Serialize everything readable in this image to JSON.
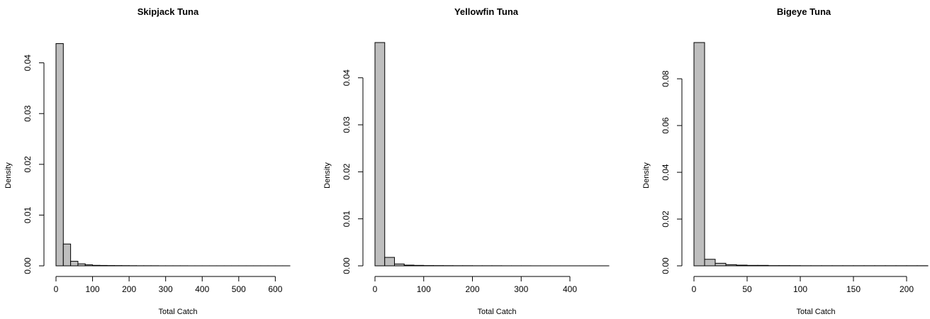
{
  "chart_data": [
    {
      "type": "bar",
      "title": "Skipjack Tuna",
      "xlabel": "Total Catch",
      "ylabel": "Density",
      "bin_width": 20,
      "bin_start": 0,
      "values": [
        0.0438,
        0.0043,
        0.0009,
        0.0004,
        0.0002,
        0.0001,
        8e-05,
        6e-05,
        5e-05,
        4e-05,
        3e-05,
        2e-05,
        2e-05,
        2e-05,
        1e-05,
        1e-05,
        1e-05,
        1e-05,
        5e-06,
        5e-06,
        5e-06,
        5e-06,
        5e-06,
        5e-06,
        5e-06,
        5e-06,
        5e-06,
        5e-06,
        5e-06,
        5e-06,
        5e-06,
        5e-06
      ],
      "xlim": [
        0,
        640
      ],
      "ylim": [
        0,
        0.044
      ],
      "xticks": [
        0,
        100,
        200,
        300,
        400,
        500,
        600
      ],
      "yticks": [
        0.0,
        0.01,
        0.02,
        0.03,
        0.04
      ],
      "ytick_labels": [
        "0.00",
        "0.01",
        "0.02",
        "0.03",
        "0.04"
      ],
      "grid": false
    },
    {
      "type": "bar",
      "title": "Yellowfin Tuna",
      "xlabel": "Total Catch",
      "ylabel": "Density",
      "bin_width": 20,
      "bin_start": 0,
      "values": [
        0.0475,
        0.0018,
        0.0004,
        0.00015,
        0.0001,
        6e-05,
        5e-05,
        4e-05,
        3e-05,
        3e-05,
        2e-05,
        2e-05,
        2e-05,
        1e-05,
        1e-05,
        1e-05,
        5e-06,
        5e-06,
        5e-06,
        5e-06,
        5e-06,
        5e-06,
        5e-06,
        5e-06
      ],
      "xlim": [
        0,
        480
      ],
      "ylim": [
        0,
        0.0475
      ],
      "xticks": [
        0,
        100,
        200,
        300,
        400
      ],
      "yticks": [
        0.0,
        0.01,
        0.02,
        0.03,
        0.04
      ],
      "ytick_labels": [
        "0.00",
        "0.01",
        "0.02",
        "0.03",
        "0.04"
      ],
      "grid": false
    },
    {
      "type": "bar",
      "title": "Bigeye Tuna",
      "xlabel": "Total Catch",
      "ylabel": "Density",
      "bin_width": 10,
      "bin_start": 0,
      "values": [
        0.0955,
        0.0028,
        0.0011,
        0.0005,
        0.0003,
        0.0002,
        0.0002,
        0.0001,
        0.0001,
        8e-05,
        5e-05,
        5e-05,
        5e-05,
        5e-05,
        5e-05,
        5e-05,
        5e-05,
        5e-05,
        5e-05,
        5e-05,
        5e-05,
        5e-05
      ],
      "xlim": [
        0,
        220
      ],
      "ylim": [
        0,
        0.0955
      ],
      "xticks": [
        0,
        50,
        100,
        150,
        200
      ],
      "yticks": [
        0.0,
        0.02,
        0.04,
        0.06,
        0.08
      ],
      "ytick_labels": [
        "0.00",
        "0.02",
        "0.04",
        "0.06",
        "0.08"
      ],
      "grid": false
    }
  ]
}
